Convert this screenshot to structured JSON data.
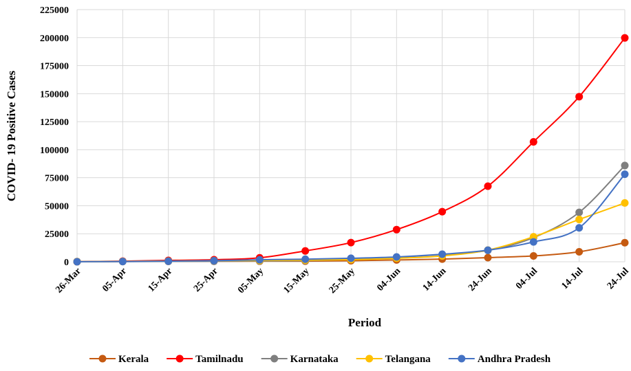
{
  "chart_data": {
    "type": "line",
    "x_label": "Period",
    "y_label": "COVID- 19 Positive Cases",
    "categories": [
      "26-Mar",
      "05-Apr",
      "15-Apr",
      "25-Apr",
      "05-May",
      "15-May",
      "25-May",
      "04-Jun",
      "14-Jun",
      "24-Jun",
      "04-Jul",
      "14-Jul",
      "24-Jul"
    ],
    "series": [
      {
        "name": "Kerala",
        "color": "#c55a11",
        "values": [
          118,
          306,
          387,
          458,
          499,
          560,
          896,
          1600,
          2400,
          3700,
          5200,
          8900,
          17000
        ]
      },
      {
        "name": "Tamilnadu",
        "color": "#ff0000",
        "values": [
          29,
          571,
          1242,
          1821,
          3550,
          9674,
          17082,
          28694,
          44661,
          67468,
          107001,
          147324,
          199749
        ]
      },
      {
        "name": "Karnataka",
        "color": "#7f7f7f",
        "values": [
          55,
          144,
          279,
          474,
          671,
          987,
          2182,
          4063,
          6516,
          10118,
          21549,
          44077,
          85870
        ]
      },
      {
        "name": "Telangana",
        "color": "#ffc000",
        "values": [
          44,
          321,
          624,
          990,
          1096,
          1414,
          1920,
          3147,
          5193,
          10444,
          22312,
          37745,
          52466
        ]
      },
      {
        "name": "Andhra Pradesh",
        "color": "#4472c4",
        "values": [
          11,
          226,
          525,
          1016,
          1777,
          2307,
          3117,
          4303,
          6720,
          10331,
          17699,
          30300,
          78127
        ]
      }
    ],
    "ylim": [
      0,
      225000
    ],
    "yticks": [
      0,
      25000,
      50000,
      75000,
      100000,
      125000,
      150000,
      175000,
      200000,
      225000
    ],
    "grid": true,
    "legend": "bottom"
  }
}
